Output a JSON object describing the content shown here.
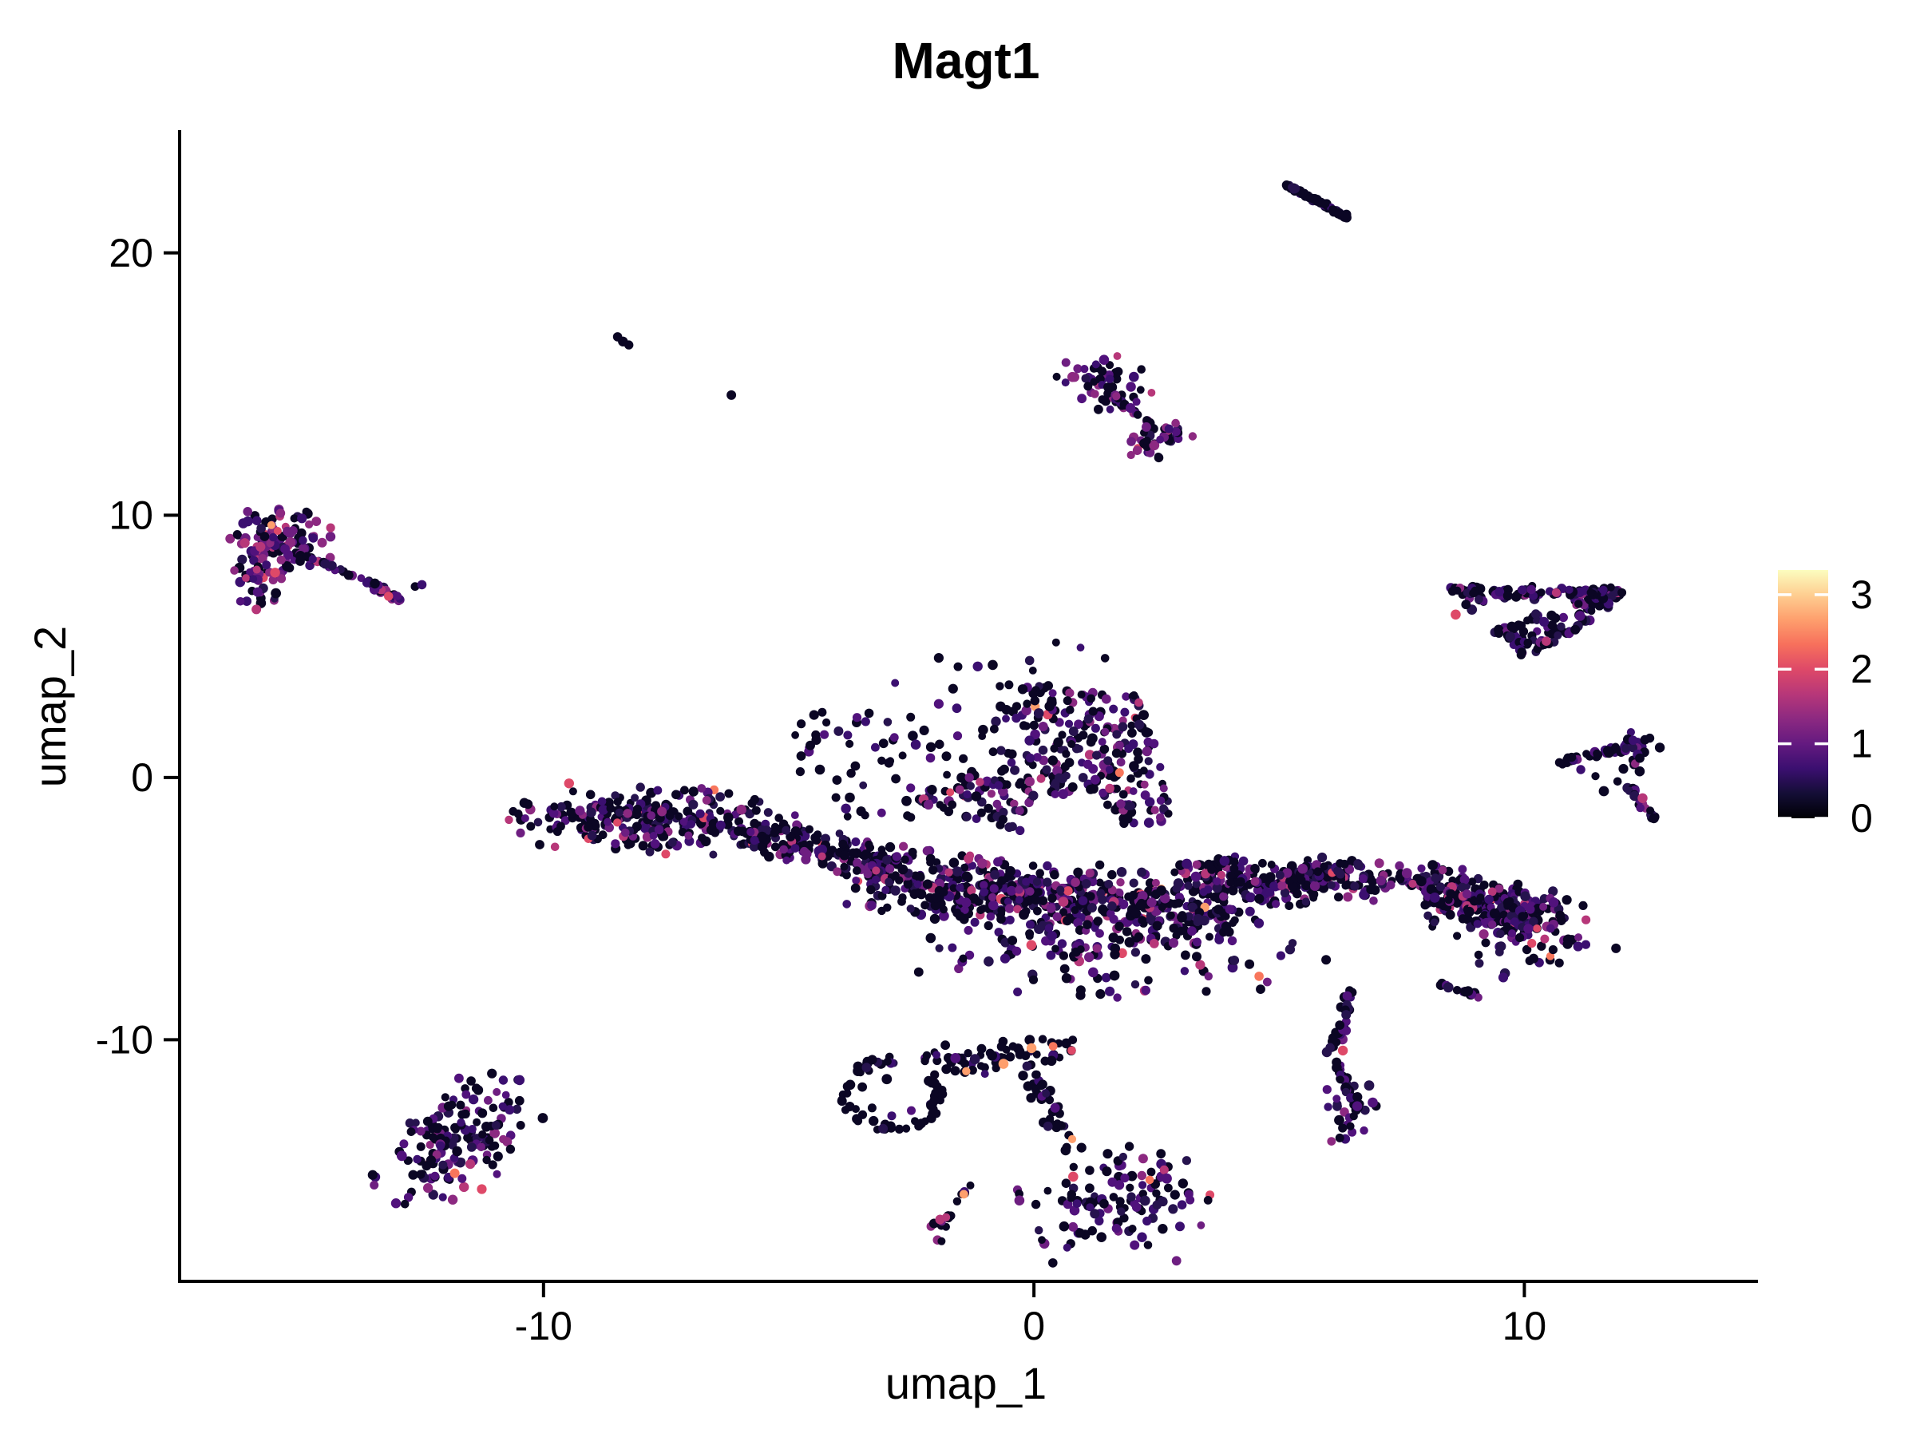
{
  "chart_data": {
    "type": "scatter",
    "title": "Magt1",
    "xlabel": "umap_1",
    "ylabel": "umap_2",
    "x_ticks": [
      -10,
      0,
      10
    ],
    "y_ticks": [
      -10,
      0,
      10,
      20
    ],
    "xlim": [
      -17.42,
      14.73
    ],
    "ylim": [
      -19.21,
      24.62
    ],
    "grid": false,
    "legend": {
      "position": "right",
      "ticks": [
        0,
        1,
        2,
        3
      ],
      "vmin": 0,
      "vmax": 3.33,
      "colormap": "magma",
      "stops": [
        [
          0.0,
          "#000004"
        ],
        [
          0.1,
          "#140e36"
        ],
        [
          0.2,
          "#3b0f70"
        ],
        [
          0.3,
          "#641a80"
        ],
        [
          0.4,
          "#8c2981"
        ],
        [
          0.5,
          "#b73779"
        ],
        [
          0.6,
          "#de4968"
        ],
        [
          0.7,
          "#f7705c"
        ],
        [
          0.8,
          "#fe9f6d"
        ],
        [
          0.9,
          "#fece91"
        ],
        [
          1.0,
          "#fcfdbf"
        ]
      ]
    },
    "palette": {
      "k": "#0b0624",
      "ind": "#26134e",
      "dkp": "#3b0f70",
      "pur": "#51127c",
      "mpur": "#6e1e81",
      "mag": "#8c2981",
      "bmag": "#b73779",
      "pink": "#de4968",
      "sal": "#f8765c",
      "org": "#fe9f6d"
    },
    "mixes": {
      "black": {
        "k": 0.9,
        "ind": 0.07,
        "dkp": 0.03
      },
      "blackish": {
        "k": 0.8,
        "ind": 0.08,
        "dkp": 0.07,
        "pur": 0.05
      },
      "darksparse": {
        "k": 0.68,
        "ind": 0.1,
        "dkp": 0.12,
        "pur": 0.1
      },
      "dark2": {
        "k": 0.55,
        "ind": 0.14,
        "dkp": 0.12,
        "pur": 0.1,
        "mpur": 0.05,
        "mag": 0.03,
        "bmag": 0.01
      },
      "mixed": {
        "k": 0.46,
        "ind": 0.15,
        "dkp": 0.12,
        "pur": 0.1,
        "mpur": 0.07,
        "mag": 0.055,
        "bmag": 0.025,
        "pink": 0.012,
        "sal": 0.002,
        "org": 0.001
      },
      "mixed2": {
        "k": 0.48,
        "ind": 0.14,
        "dkp": 0.12,
        "pur": 0.11,
        "mpur": 0.07,
        "mag": 0.05,
        "bmag": 0.02,
        "pink": 0.01
      },
      "purpleheavy": {
        "k": 0.34,
        "ind": 0.1,
        "dkp": 0.14,
        "pur": 0.15,
        "mpur": 0.12,
        "mag": 0.1,
        "bmag": 0.04,
        "pink": 0.01
      },
      "purplebright": {
        "k": 0.28,
        "ind": 0.08,
        "dkp": 0.13,
        "pur": 0.16,
        "mpur": 0.14,
        "mag": 0.12,
        "bmag": 0.06,
        "pink": 0.02,
        "org": 0.01
      },
      "tailmix": {
        "k": 0.5,
        "ind": 0.16,
        "dkp": 0.14,
        "pur": 0.12,
        "mpur": 0.05,
        "mag": 0.03
      }
    },
    "holes": [
      {
        "c": [
          0.73,
          -1.65
        ],
        "r": [
          0.95,
          0.95
        ]
      },
      {
        "c": [
          -1.1,
          1.35
        ],
        "r": [
          0.8,
          1.0
        ]
      },
      {
        "c": [
          3.35,
          -2.75
        ],
        "r": [
          0.5,
          0.55
        ]
      },
      {
        "c": [
          7.5,
          -4.6
        ],
        "r": [
          0.45,
          0.5
        ]
      },
      {
        "c": [
          9.6,
          6.3
        ],
        "r": [
          0.55,
          0.55
        ]
      },
      {
        "c": [
          10.6,
          6.6
        ],
        "r": [
          0.45,
          0.4
        ]
      }
    ],
    "clusters": [
      {
        "name": "streak-top-right",
        "type": "band",
        "p1": [
          5.16,
          22.58
        ],
        "p2": [
          6.4,
          21.36
        ],
        "w": 0.14,
        "n": 55,
        "mix": "black"
      },
      {
        "name": "speck-1",
        "type": "dots",
        "pts": [
          [
            -8.49,
            16.8,
            "k"
          ],
          [
            -8.26,
            16.49,
            "k"
          ],
          [
            -8.38,
            16.62,
            "k"
          ]
        ]
      },
      {
        "name": "speck-2",
        "type": "dots",
        "pts": [
          [
            -6.17,
            14.58,
            "k"
          ]
        ]
      },
      {
        "name": "upper-mid-head",
        "type": "gauss",
        "c": [
          1.42,
          15.05
        ],
        "s": [
          0.48,
          0.5
        ],
        "n": 52,
        "mix": "purpleheavy"
      },
      {
        "name": "upper-mid-chain",
        "type": "band",
        "p1": [
          1.62,
          14.55
        ],
        "p2": [
          2.5,
          13.3
        ],
        "w": 0.14,
        "n": 20,
        "mix": "purpleheavy"
      },
      {
        "name": "upper-mid-end",
        "type": "gauss",
        "c": [
          2.62,
          13.12
        ],
        "s": [
          0.3,
          0.33
        ],
        "n": 22,
        "mix": "purpleheavy"
      },
      {
        "name": "upper-mid-detached",
        "type": "gauss",
        "c": [
          2.3,
          12.55
        ],
        "s": [
          0.2,
          0.28
        ],
        "n": 15,
        "mix": "purplebright"
      },
      {
        "name": "left-head",
        "type": "gauss",
        "c": [
          -15.42,
          9.1
        ],
        "s": [
          0.5,
          0.6
        ],
        "n": 100,
        "mix": "purplebright"
      },
      {
        "name": "left-lobe",
        "type": "gauss",
        "c": [
          -15.74,
          7.6
        ],
        "s": [
          0.27,
          0.55
        ],
        "n": 42,
        "mix": "purplebright"
      },
      {
        "name": "left-chain",
        "type": "band",
        "p1": [
          -15.0,
          8.55
        ],
        "p2": [
          -13.6,
          7.5
        ],
        "w": 0.2,
        "n": 16,
        "mix": "mixed"
      },
      {
        "name": "left-tail",
        "type": "band",
        "p1": [
          -13.6,
          7.5
        ],
        "p2": [
          -12.95,
          6.75
        ],
        "w": 0.26,
        "n": 32,
        "mix": "purpleheavy"
      },
      {
        "name": "left-tail-end",
        "type": "dots",
        "pts": [
          [
            -12.62,
            7.28,
            "k"
          ],
          [
            -12.48,
            7.35,
            "dkp"
          ]
        ]
      },
      {
        "name": "left-head-warm",
        "type": "dots",
        "pts": [
          [
            -15.55,
            9.62,
            "org"
          ],
          [
            -15.42,
            9.4,
            "pink"
          ],
          [
            -13.16,
            6.91,
            "pink"
          ]
        ]
      },
      {
        "name": "tri-right",
        "type": "poly",
        "pts": [
          [
            8.45,
            7.25
          ],
          [
            12.1,
            7.15
          ],
          [
            11.35,
            5.9
          ],
          [
            9.95,
            4.5
          ]
        ],
        "n": 150,
        "mix": "dark2"
      },
      {
        "name": "tri-right-top",
        "type": "band",
        "p1": [
          8.5,
          7.1
        ],
        "p2": [
          12.05,
          7.05
        ],
        "w": 0.5,
        "n": 60,
        "mix": "dark2"
      },
      {
        "name": "tri-warm",
        "type": "dots",
        "pts": [
          [
            8.6,
            6.21,
            "pink"
          ]
        ]
      },
      {
        "name": "arrow-upper",
        "type": "band",
        "p1": [
          10.6,
          0.55
        ],
        "p2": [
          12.45,
          1.3
        ],
        "w": 0.3,
        "n": 45,
        "mix": "dark2"
      },
      {
        "name": "arrow-vertex",
        "type": "gauss",
        "c": [
          12.42,
          0.9
        ],
        "s": [
          0.18,
          0.45
        ],
        "n": 14,
        "mix": "dark2"
      },
      {
        "name": "arrow-hook",
        "type": "band",
        "p1": [
          12.15,
          -0.35
        ],
        "p2": [
          12.62,
          -1.55
        ],
        "w": 0.22,
        "n": 18,
        "mix": "dark2"
      },
      {
        "name": "arrow-sparse",
        "type": "dots",
        "pts": [
          [
            11.45,
            0.05,
            "k"
          ],
          [
            11.9,
            -0.15,
            "k"
          ],
          [
            12.02,
            0.33,
            "k"
          ],
          [
            11.62,
            -0.52,
            "k"
          ],
          [
            11.15,
            0.3,
            "dkp"
          ]
        ]
      },
      {
        "name": "arrow-warm",
        "type": "dots",
        "pts": [
          [
            12.41,
            -0.79,
            "bmag"
          ]
        ]
      },
      {
        "name": "mass-head",
        "type": "gauss",
        "c": [
          -7.9,
          -1.6
        ],
        "s": [
          1.3,
          0.65
        ],
        "n": 260,
        "mix": "mixed"
      },
      {
        "name": "mass-bridge",
        "type": "band",
        "p1": [
          -5.9,
          -2.1
        ],
        "p2": [
          -3.0,
          -3.3
        ],
        "w": 1.5,
        "n": 170,
        "mix": "mixed"
      },
      {
        "name": "mass-scatter-upper-left",
        "type": "rect",
        "r": [
          -5.1,
          -1.6,
          -2.4,
          2.6
        ],
        "n": 48,
        "mix": "darksparse"
      },
      {
        "name": "mass-core",
        "type": "band",
        "p1": [
          -3.2,
          -3.8
        ],
        "p2": [
          4.0,
          -5.2
        ],
        "w": 2.8,
        "n": 560,
        "mix": "mixed"
      },
      {
        "name": "mass-lower-bulge",
        "type": "gauss",
        "c": [
          1.6,
          -6.2
        ],
        "s": [
          2.1,
          1.0
        ],
        "n": 170,
        "mix": "mixed"
      },
      {
        "name": "mass-right",
        "type": "band",
        "p1": [
          3.2,
          -3.5
        ],
        "p2": [
          5.5,
          -4.3
        ],
        "w": 1.8,
        "n": 150,
        "mix": "mixed"
      },
      {
        "name": "mass-top-lobe",
        "type": "poly",
        "pts": [
          [
            -2.5,
            -0.9
          ],
          [
            0.05,
            3.55
          ],
          [
            2.2,
            3.2
          ],
          [
            2.9,
            -1.6
          ],
          [
            0.1,
            -2.3
          ]
        ],
        "n": 310,
        "mix": "mixed"
      },
      {
        "name": "mass-lobe-halo",
        "type": "rect",
        "r": [
          -3.3,
          0.6,
          0.9,
          4.8
        ],
        "n": 42,
        "mix": "darksparse"
      },
      {
        "name": "mass-apex-dots",
        "type": "dots",
        "pts": [
          [
            0.45,
            5.15,
            "k"
          ],
          [
            0.95,
            4.95,
            "dkp"
          ],
          [
            1.45,
            4.55,
            "k"
          ]
        ]
      },
      {
        "name": "mass-neck",
        "type": "band",
        "p1": [
          5.2,
          -3.6
        ],
        "p2": [
          8.0,
          -4.2
        ],
        "w": 1.6,
        "n": 130,
        "mix": "mixed"
      },
      {
        "name": "band-right",
        "type": "band",
        "p1": [
          8.0,
          -4.3
        ],
        "p2": [
          10.5,
          -5.5
        ],
        "w": 2.2,
        "n": 240,
        "mix": "mixed"
      },
      {
        "name": "band-right-ext",
        "type": "gauss",
        "c": [
          10.0,
          -6.2
        ],
        "s": [
          0.95,
          0.8
        ],
        "n": 55,
        "mix": "mixed"
      },
      {
        "name": "mini-streak",
        "type": "band",
        "p1": [
          8.32,
          -7.85
        ],
        "p2": [
          9.28,
          -8.5
        ],
        "w": 0.18,
        "n": 13,
        "mix": "dark2"
      },
      {
        "name": "tail-upper",
        "type": "band",
        "p1": [
          6.45,
          -8.15
        ],
        "p2": [
          6.1,
          -10.6
        ],
        "w": 0.32,
        "n": 32,
        "mix": "tailmix"
      },
      {
        "name": "tail-lower",
        "type": "band",
        "p1": [
          6.1,
          -10.6
        ],
        "p2": [
          6.58,
          -12.5
        ],
        "w": 0.32,
        "n": 30,
        "mix": "tailmix"
      },
      {
        "name": "tail-end",
        "type": "gauss",
        "c": [
          6.35,
          -12.85
        ],
        "s": [
          0.3,
          0.55
        ],
        "n": 26,
        "mix": "tailmix"
      },
      {
        "name": "tail-warm",
        "type": "dots",
        "pts": [
          [
            6.3,
            -10.41,
            "pink"
          ]
        ]
      },
      {
        "name": "stray-below-mass",
        "type": "dots",
        "pts": [
          [
            0.95,
            -8.3,
            "k"
          ]
        ]
      },
      {
        "name": "ring",
        "type": "arc",
        "c": [
          -2.9,
          -12.1
        ],
        "r": [
          0.92,
          1.3
        ],
        "a": [
          85,
          395
        ],
        "jit": 0.14,
        "n": 62,
        "mix": "black"
      },
      {
        "name": "ring-inner",
        "type": "dots",
        "pts": [
          [
            -3.3,
            -12.6,
            "k"
          ],
          [
            -2.9,
            -12.9,
            "dkp"
          ],
          [
            -3.5,
            -11.8,
            "k"
          ],
          [
            -2.5,
            -12.7,
            "pur"
          ],
          [
            -3.0,
            -11.5,
            "k"
          ]
        ]
      },
      {
        "name": "ring-band",
        "type": "band",
        "p1": [
          -2.25,
          -10.85
        ],
        "p2": [
          0.75,
          -10.35
        ],
        "w": 1.3,
        "n": 62,
        "mix": "blackish"
      },
      {
        "name": "ring-band-warm",
        "type": "dots",
        "pts": [
          [
            -1.38,
            -11.2,
            "org"
          ],
          [
            -0.62,
            -10.92,
            "org"
          ],
          [
            -0.05,
            -10.32,
            "org"
          ],
          [
            0.39,
            -10.25,
            "sal"
          ],
          [
            0.77,
            -10.41,
            "pink"
          ],
          [
            -1.6,
            -10.7,
            "pur"
          ],
          [
            -1.0,
            -11.3,
            "dkp"
          ]
        ]
      },
      {
        "name": "chain-bottom",
        "type": "band",
        "p1": [
          -0.1,
          -11.3
        ],
        "p2": [
          0.75,
          -14.2
        ],
        "w": 0.6,
        "n": 38,
        "mix": "blackish"
      },
      {
        "name": "chain-bottom-warm",
        "type": "dots",
        "pts": [
          [
            0.78,
            -13.79,
            "org"
          ]
        ]
      },
      {
        "name": "bottom-blob",
        "type": "gauss",
        "c": [
          1.75,
          -16.1
        ],
        "s": [
          0.95,
          1.1
        ],
        "n": 120,
        "mix": "mixed2"
      },
      {
        "name": "bottom-blob-warm",
        "type": "dots",
        "pts": [
          [
            2.36,
            -15.34,
            "sal"
          ],
          [
            0.8,
            -15.22,
            "pink"
          ]
        ]
      },
      {
        "name": "mini-chain-bottom",
        "type": "band",
        "p1": [
          -1.22,
          -15.3
        ],
        "p2": [
          -1.8,
          -16.9
        ],
        "w": 0.16,
        "n": 9,
        "mix": "black"
      },
      {
        "name": "mini-chain-end",
        "type": "gauss",
        "c": [
          -1.85,
          -17.1
        ],
        "s": [
          0.18,
          0.3
        ],
        "n": 9,
        "mix": "purpleheavy"
      },
      {
        "name": "mini-chain-warm",
        "type": "dots",
        "pts": [
          [
            -1.43,
            -15.89,
            "org"
          ]
        ]
      },
      {
        "name": "bottom-left",
        "type": "gauss",
        "c": [
          -11.75,
          -13.8
        ],
        "s": [
          0.62,
          1.3
        ],
        "rot": -20,
        "n": 165,
        "mix": "mixed2"
      },
      {
        "name": "bottom-left-warm",
        "type": "dots",
        "pts": [
          [
            -11.81,
            -15.09,
            "sal"
          ]
        ]
      }
    ]
  }
}
